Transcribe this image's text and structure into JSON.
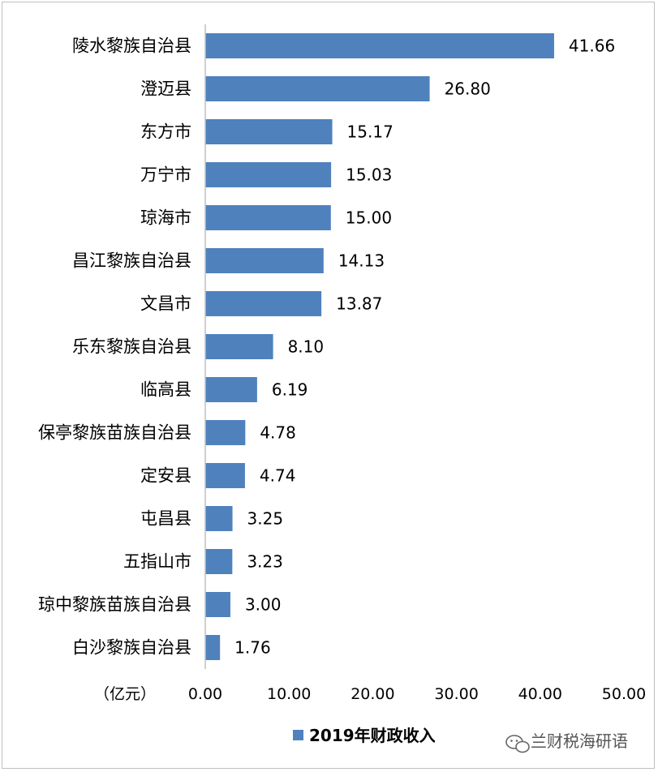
{
  "chart_data": {
    "type": "bar",
    "orientation": "horizontal",
    "categories": [
      "陵水黎族自治县",
      "澄迈县",
      "东方市",
      "万宁市",
      "琼海市",
      "昌江黎族自治县",
      "文昌市",
      "乐东黎族自治县",
      "临高县",
      "保亭黎族苗族自治县",
      "定安县",
      "屯昌县",
      "五指山市",
      "琼中黎族苗族自治县",
      "白沙黎族自治县"
    ],
    "series": [
      {
        "name": "2019年财政收入",
        "values": [
          41.66,
          26.8,
          15.17,
          15.03,
          15.0,
          14.13,
          13.87,
          8.1,
          6.19,
          4.78,
          4.74,
          3.25,
          3.23,
          3.0,
          1.76
        ],
        "value_labels": [
          "41.66",
          "26.80",
          "15.17",
          "15.03",
          "15.00",
          "14.13",
          "13.87",
          "8.10",
          "6.19",
          "4.78",
          "4.74",
          "3.25",
          "3.23",
          "3.00",
          "1.76"
        ]
      }
    ],
    "xlim": [
      0,
      50
    ],
    "x_ticks": [
      "0.00",
      "10.00",
      "20.00",
      "30.00",
      "40.00",
      "50.00"
    ],
    "unit": "（亿元）",
    "grid": false,
    "legend": "bottom",
    "colors": {
      "bar": "#4f81bd",
      "axis": "#bfbfbf"
    }
  },
  "watermark": {
    "text": "兰财税海研语",
    "icon": "wechat-icon"
  }
}
